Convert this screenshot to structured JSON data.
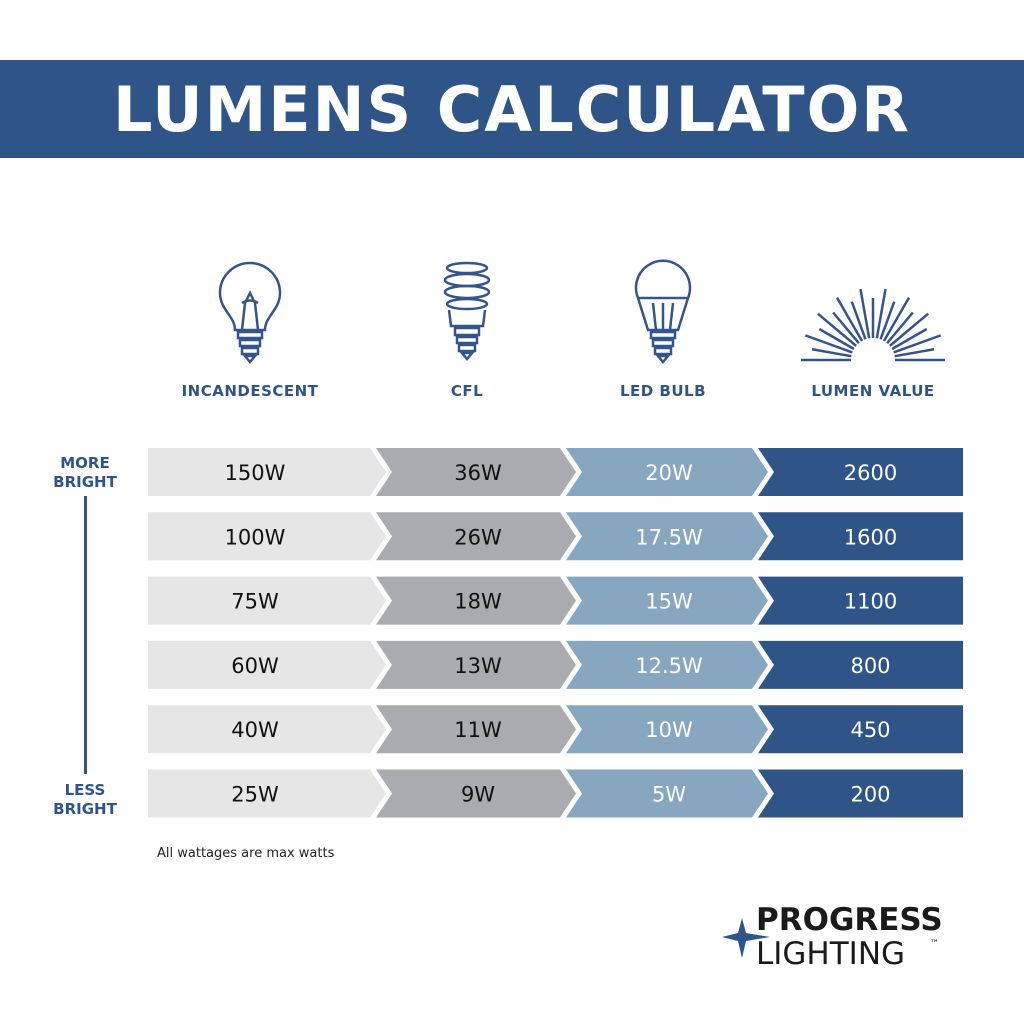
{
  "title": "LUMENS CALCULATOR",
  "columns": [
    {
      "label": "INCANDESCENT",
      "icon": "incandescent-bulb-icon"
    },
    {
      "label": "CFL",
      "icon": "cfl-bulb-icon"
    },
    {
      "label": "LED BULB",
      "icon": "led-bulb-icon"
    },
    {
      "label": "LUMEN VALUE",
      "icon": "sunburst-icon"
    }
  ],
  "scale": {
    "top": [
      "MORE",
      "BRIGHT"
    ],
    "bottom": [
      "LESS",
      "BRIGHT"
    ]
  },
  "rows": [
    [
      "150W",
      "36W",
      "20W",
      "2600"
    ],
    [
      "100W",
      "26W",
      "17.5W",
      "1600"
    ],
    [
      "75W",
      "18W",
      "15W",
      "1100"
    ],
    [
      "60W",
      "13W",
      "12.5W",
      "800"
    ],
    [
      "40W",
      "11W",
      "10W",
      "450"
    ],
    [
      "25W",
      "9W",
      "5W",
      "200"
    ]
  ],
  "colors": {
    "brand": "#2e5488",
    "segments": [
      "#e6e6e6",
      "#a9abae",
      "#87a6bf",
      "#2f5488"
    ],
    "text": [
      "#111111",
      "#111111",
      "#ffffff",
      "#ffffff"
    ]
  },
  "footnote": "All wattages are max watts",
  "logo": {
    "line1": "PROGRESS",
    "line2": "LIGHTING",
    "tm": "™"
  }
}
